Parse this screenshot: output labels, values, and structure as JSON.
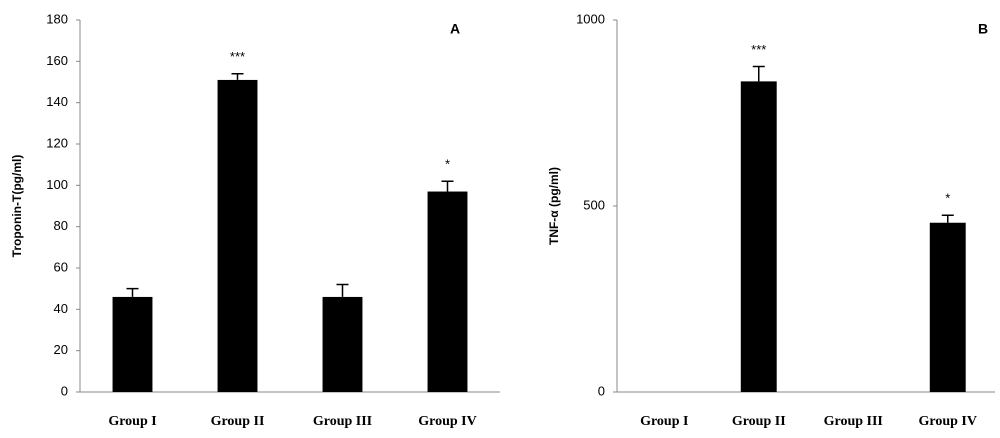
{
  "chart_data": [
    {
      "type": "bar",
      "title": "A",
      "y_label": "Troponin-T(pg/ml)",
      "categories": [
        "Group I",
        "Group II",
        "Group III",
        "Group IV"
      ],
      "values": [
        46,
        151,
        46,
        97
      ],
      "errors": [
        4,
        3,
        6,
        5
      ],
      "significance": [
        null,
        "***",
        null,
        "*"
      ],
      "color": "#000000",
      "ylim": [
        0,
        180
      ],
      "yticks": [
        0,
        20,
        40,
        60,
        80,
        100,
        120,
        140,
        160,
        180
      ],
      "grid": false
    },
    {
      "type": "bar",
      "title": "B",
      "y_label": "TNF-α (pg/ml)",
      "categories": [
        "Group I",
        "Group II",
        "Group III",
        "Group IV"
      ],
      "values": [
        null,
        835,
        null,
        455
      ],
      "errors": [
        null,
        40,
        null,
        20
      ],
      "significance": [
        null,
        "***",
        null,
        "*"
      ],
      "color": "#000000",
      "ylim": [
        0,
        1000
      ],
      "yticks": [
        0,
        500,
        1000
      ],
      "grid": false
    }
  ]
}
